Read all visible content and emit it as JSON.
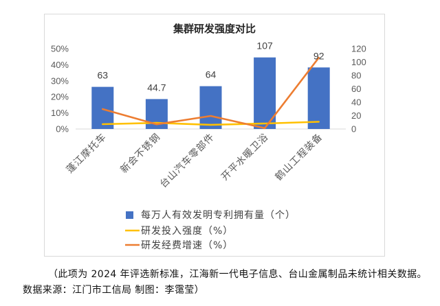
{
  "chart_data": {
    "type": "bar",
    "title": "集群研发强度对比",
    "categories": [
      "蓬江摩托车",
      "新会不锈钢",
      "台山汽车零部件",
      "开平水暖卫浴",
      "鹤山工程装备"
    ],
    "series": [
      {
        "name": "每万人有效发明专利拥有量（个）",
        "type": "bar",
        "axis": "right",
        "color": "#4472C4",
        "values": [
          63,
          44.7,
          64,
          107,
          92
        ],
        "data_labels": true
      },
      {
        "name": "研发投入强度（%）",
        "type": "line",
        "axis": "left",
        "color": "#FFC000",
        "values": [
          3.0,
          3.8,
          2.6,
          3.4,
          4.5
        ]
      },
      {
        "name": "研发经费增速（%）",
        "type": "line",
        "axis": "left",
        "color": "#ED7D31",
        "values": [
          12.4,
          2.9,
          8.1,
          0.5,
          44.4
        ]
      }
    ],
    "left_axis": {
      "ylim": [
        0,
        50
      ],
      "tick_values": [
        0,
        10,
        20,
        30,
        40,
        50
      ],
      "tick_labels": [
        "0%",
        "10%",
        "20%",
        "30%",
        "40%",
        "50%"
      ]
    },
    "right_axis": {
      "ylim": [
        0,
        120
      ],
      "tick_values": [
        0,
        20,
        40,
        60,
        80,
        100,
        120
      ],
      "tick_labels": [
        "0",
        "20",
        "40",
        "60",
        "80",
        "100",
        "120"
      ]
    },
    "grid": false,
    "legend": "bottom"
  },
  "footer": {
    "note": "（此项为 2024 年评选新标准，江海新一代电子信息、台山金属制品未统计相关数据。",
    "source": "数据来源：江门市工信局 制图：李霭莹）"
  }
}
